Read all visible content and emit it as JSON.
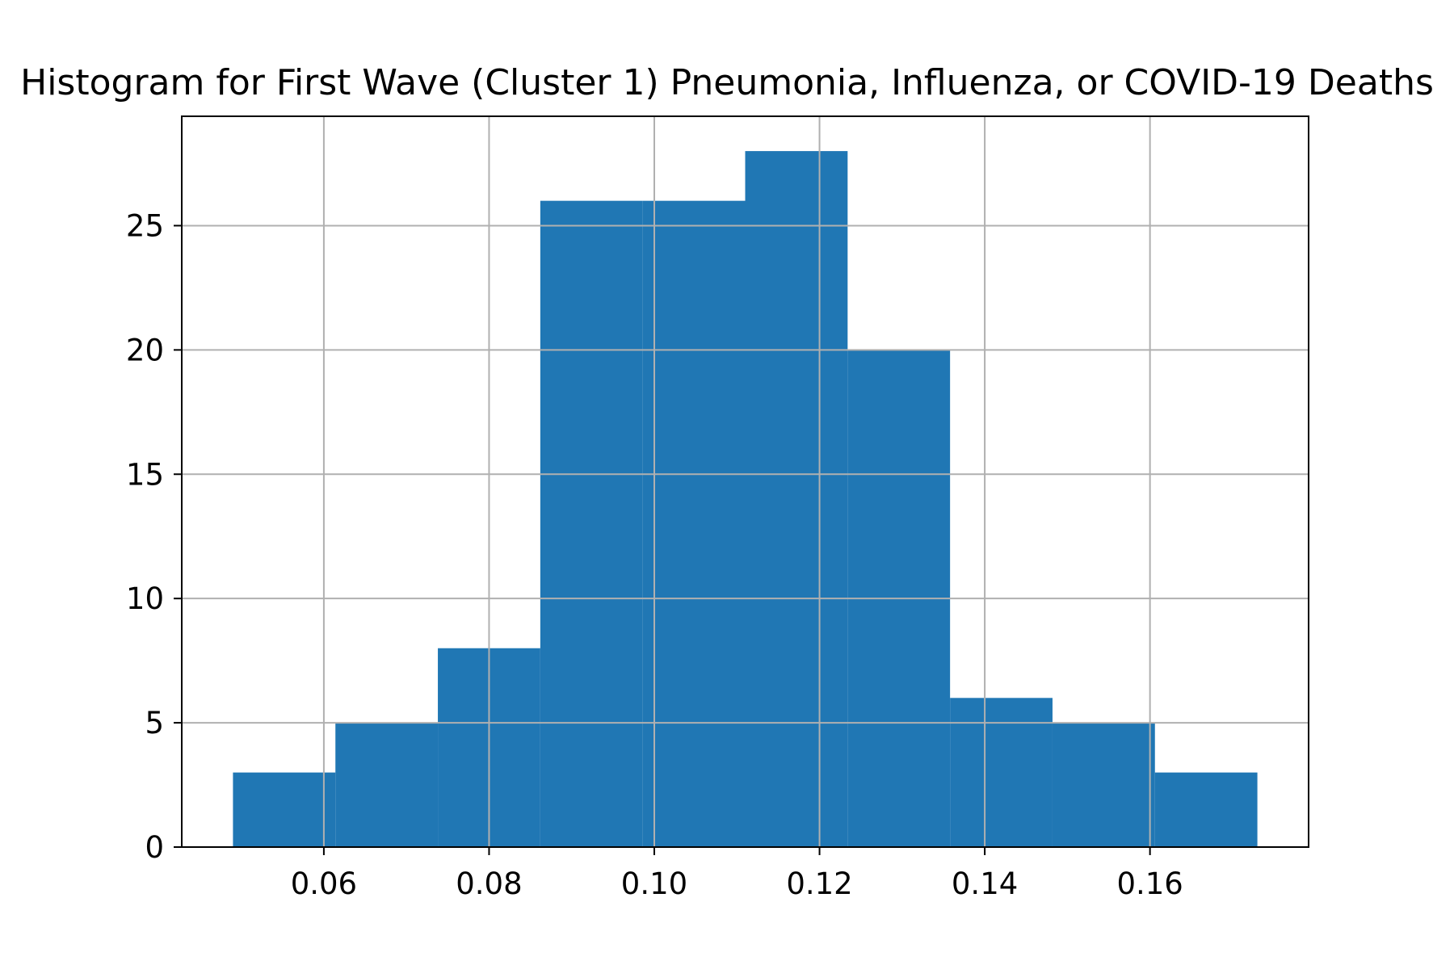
{
  "chart_data": {
    "type": "bar",
    "title": "Histogram for First Wave (Cluster 1) Pneumonia, Influenza, or COVID-19 Deaths",
    "xlabel": "",
    "ylabel": "",
    "bins": [
      {
        "x0": 0.049,
        "x1": 0.0614,
        "count": 3
      },
      {
        "x0": 0.0614,
        "x1": 0.0738,
        "count": 5
      },
      {
        "x0": 0.0738,
        "x1": 0.0862,
        "count": 8
      },
      {
        "x0": 0.0862,
        "x1": 0.0986,
        "count": 26
      },
      {
        "x0": 0.0986,
        "x1": 0.111,
        "count": 26
      },
      {
        "x0": 0.111,
        "x1": 0.1234,
        "count": 28
      },
      {
        "x0": 0.1234,
        "x1": 0.1358,
        "count": 20
      },
      {
        "x0": 0.1358,
        "x1": 0.1482,
        "count": 6
      },
      {
        "x0": 0.1482,
        "x1": 0.1606,
        "count": 5
      },
      {
        "x0": 0.1606,
        "x1": 0.173,
        "count": 3
      }
    ],
    "xlim": [
      0.0428,
      0.1792
    ],
    "ylim": [
      0,
      29.4
    ],
    "xticks": [
      0.06,
      0.08,
      0.1,
      0.12,
      0.14,
      0.16
    ],
    "xtick_labels": [
      "0.06",
      "0.08",
      "0.10",
      "0.12",
      "0.14",
      "0.16"
    ],
    "yticks": [
      0,
      5,
      10,
      15,
      20,
      25
    ],
    "ytick_labels": [
      "0",
      "5",
      "10",
      "15",
      "20",
      "25"
    ],
    "grid": true,
    "legend": "none",
    "colors": {
      "bar": "#2077b4",
      "grid": "#b0b0b0",
      "axes": "#000000",
      "background": "#ffffff"
    }
  }
}
